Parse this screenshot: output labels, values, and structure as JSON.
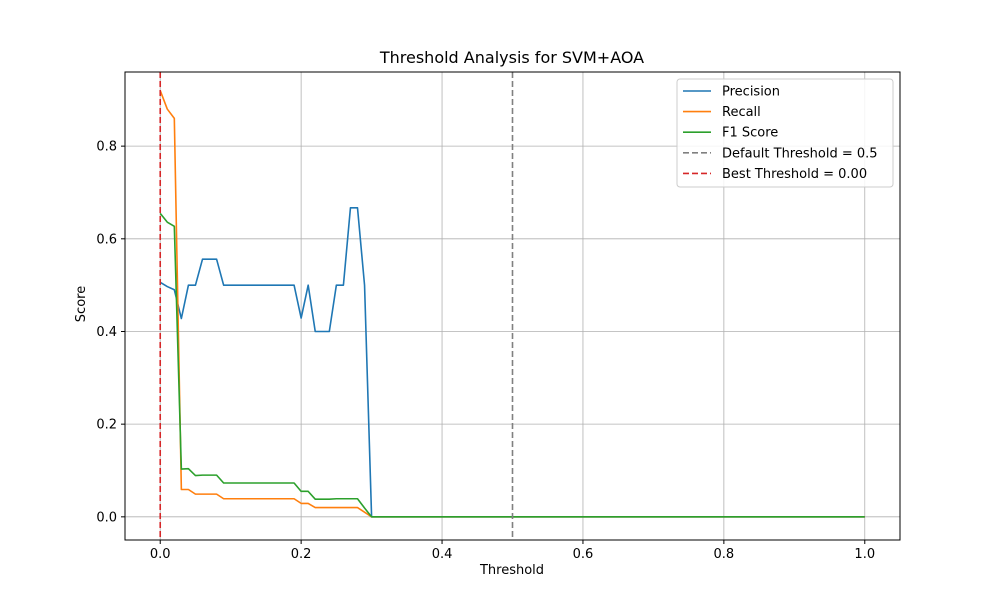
{
  "chart_data": {
    "type": "line",
    "title": "Threshold Analysis for SVM+AOA",
    "xlabel": "Threshold",
    "ylabel": "Score",
    "xlim": [
      -0.05,
      1.05
    ],
    "ylim": [
      -0.05,
      0.96
    ],
    "xticks": [
      "0.0",
      "0.2",
      "0.4",
      "0.6",
      "0.8",
      "1.0"
    ],
    "yticks": [
      "0.0",
      "0.2",
      "0.4",
      "0.6",
      "0.8"
    ],
    "grid": true,
    "legend_position": "top-right",
    "series": [
      {
        "name": "Precision",
        "color": "#1f77b4",
        "x": [
          0.0,
          0.01,
          0.02,
          0.03,
          0.04,
          0.05,
          0.06,
          0.07,
          0.08,
          0.09,
          0.1,
          0.11,
          0.12,
          0.13,
          0.14,
          0.15,
          0.16,
          0.17,
          0.18,
          0.19,
          0.2,
          0.21,
          0.22,
          0.23,
          0.24,
          0.25,
          0.26,
          0.27,
          0.28,
          0.29,
          0.3,
          0.303,
          0.31,
          1.0
        ],
        "y": [
          0.506,
          0.497,
          0.49,
          0.428,
          0.5,
          0.5,
          0.556,
          0.556,
          0.556,
          0.5,
          0.5,
          0.5,
          0.5,
          0.5,
          0.5,
          0.5,
          0.5,
          0.5,
          0.5,
          0.5,
          0.429,
          0.5,
          0.4,
          0.4,
          0.4,
          0.5,
          0.5,
          0.667,
          0.667,
          0.5,
          0.0,
          0.0,
          0.0,
          0.0
        ]
      },
      {
        "name": "Recall",
        "color": "#ff7f0e",
        "x": [
          0.0,
          0.01,
          0.02,
          0.03,
          0.04,
          0.05,
          0.06,
          0.07,
          0.08,
          0.09,
          0.1,
          0.11,
          0.12,
          0.13,
          0.14,
          0.15,
          0.16,
          0.17,
          0.18,
          0.19,
          0.2,
          0.21,
          0.22,
          0.23,
          0.24,
          0.25,
          0.26,
          0.27,
          0.28,
          0.29,
          0.3,
          0.303,
          0.31,
          1.0
        ],
        "y": [
          0.92,
          0.88,
          0.86,
          0.059,
          0.059,
          0.049,
          0.049,
          0.049,
          0.049,
          0.039,
          0.039,
          0.039,
          0.039,
          0.039,
          0.039,
          0.039,
          0.039,
          0.039,
          0.039,
          0.039,
          0.029,
          0.029,
          0.02,
          0.02,
          0.02,
          0.02,
          0.02,
          0.02,
          0.02,
          0.01,
          0.0,
          0.0,
          0.0,
          0.0
        ]
      },
      {
        "name": "F1 Score",
        "color": "#2ca02c",
        "x": [
          0.0,
          0.01,
          0.02,
          0.03,
          0.04,
          0.05,
          0.06,
          0.07,
          0.08,
          0.09,
          0.1,
          0.11,
          0.12,
          0.13,
          0.14,
          0.15,
          0.16,
          0.17,
          0.18,
          0.19,
          0.2,
          0.21,
          0.22,
          0.23,
          0.24,
          0.25,
          0.26,
          0.27,
          0.28,
          0.29,
          0.3,
          0.303,
          0.31,
          1.0
        ],
        "y": [
          0.655,
          0.636,
          0.627,
          0.103,
          0.104,
          0.089,
          0.09,
          0.09,
          0.09,
          0.073,
          0.073,
          0.073,
          0.073,
          0.073,
          0.073,
          0.073,
          0.073,
          0.073,
          0.073,
          0.073,
          0.055,
          0.055,
          0.038,
          0.038,
          0.038,
          0.039,
          0.039,
          0.039,
          0.039,
          0.019,
          0.0,
          0.0,
          0.0,
          0.0
        ]
      }
    ],
    "reference_lines": [
      {
        "name": "Default Threshold = 0.5",
        "x": 0.5,
        "color": "#808080",
        "style": "dashed"
      },
      {
        "name": "Best Threshold = 0.00",
        "x": 0.0,
        "color": "#d62728",
        "style": "dashed"
      }
    ]
  }
}
